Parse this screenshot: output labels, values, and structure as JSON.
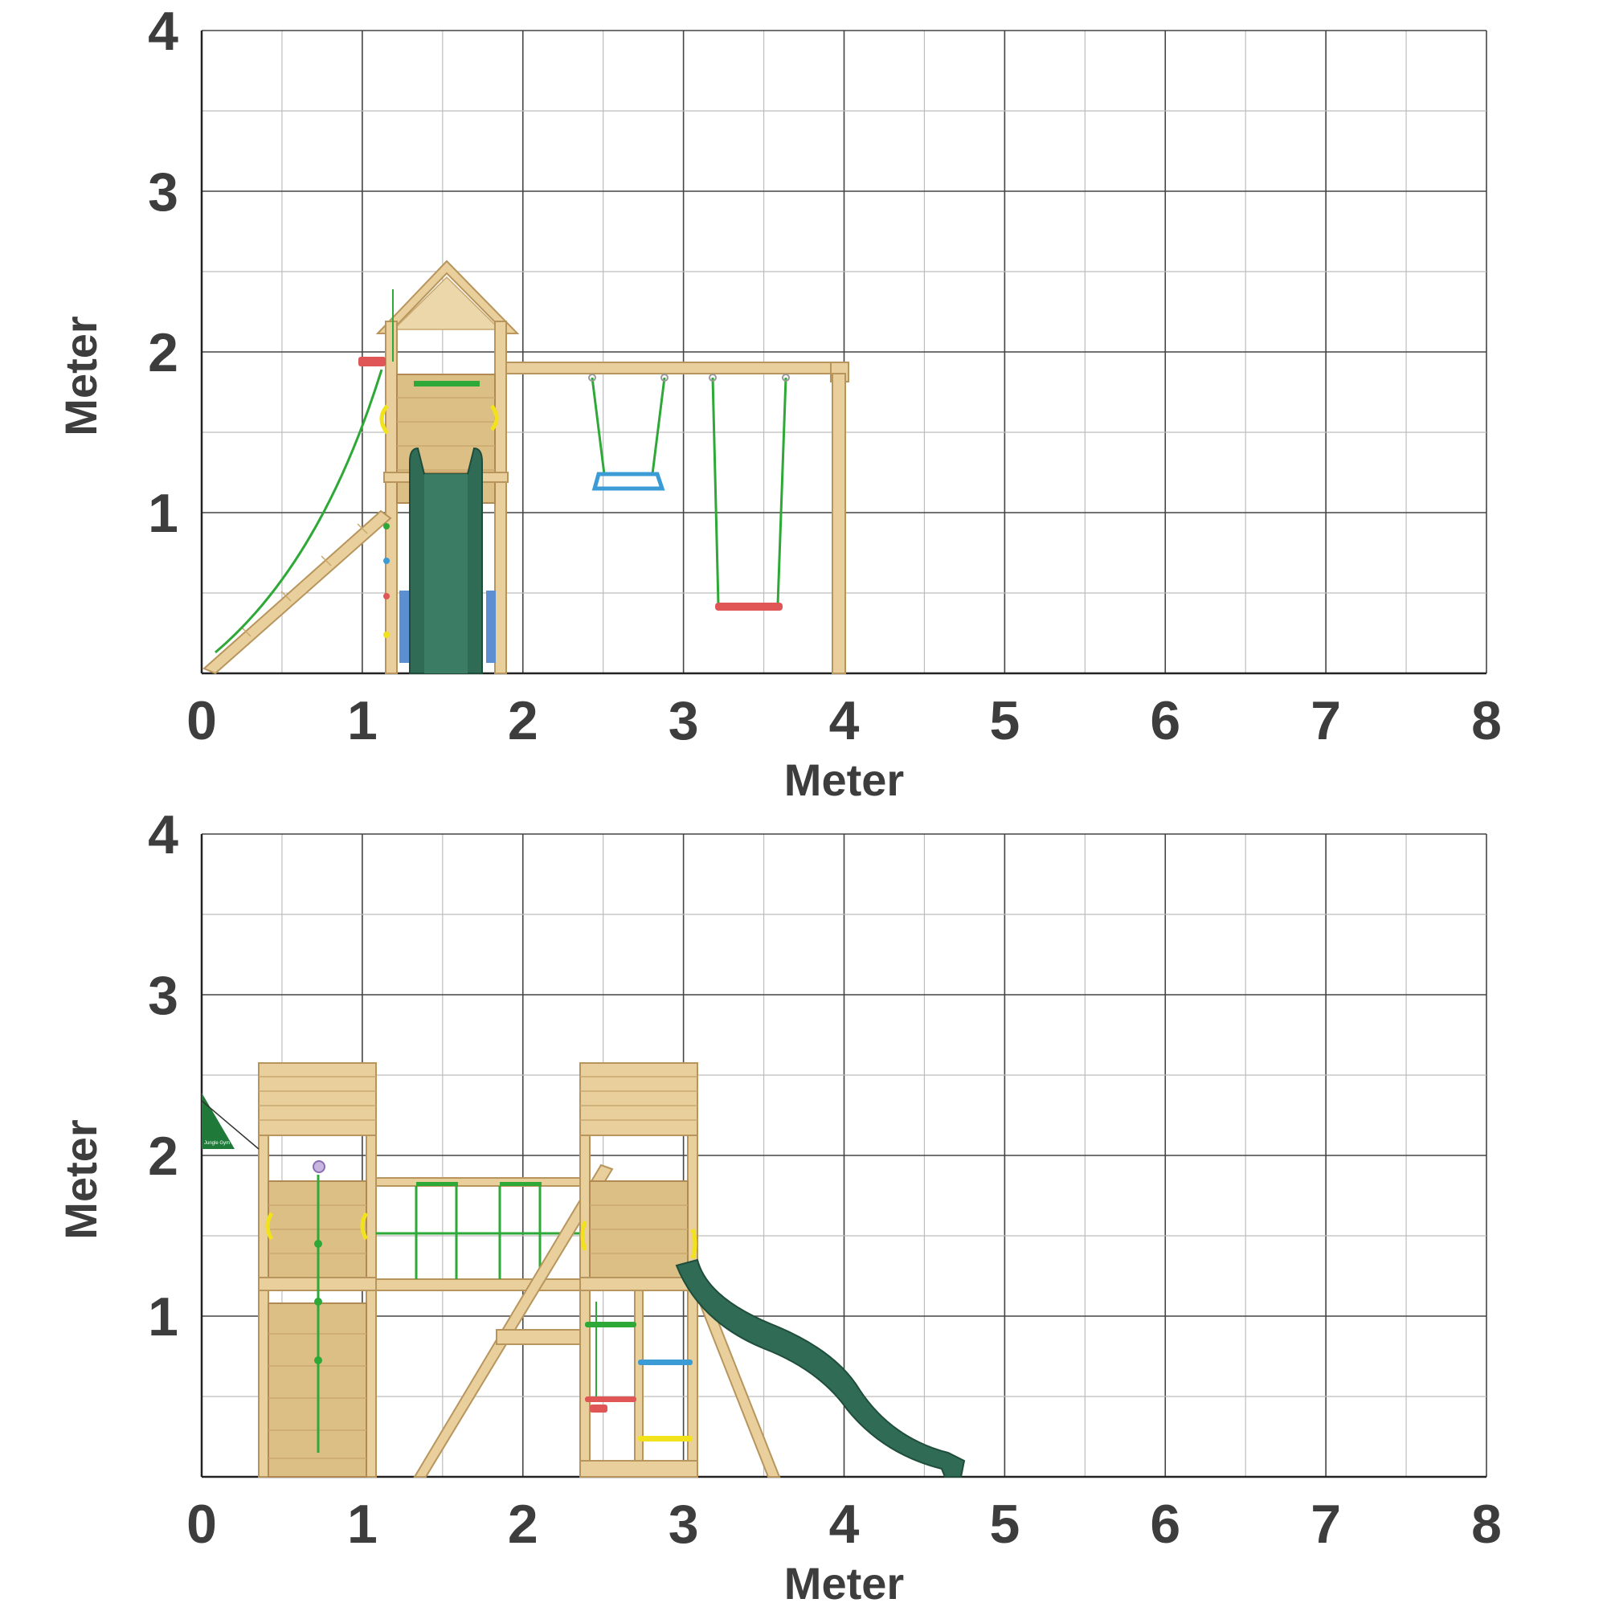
{
  "panels": [
    {
      "id": "side-view",
      "x_ticks": [
        "0",
        "1",
        "2",
        "3",
        "4",
        "5",
        "6",
        "7",
        "8"
      ],
      "y_ticks": [
        "1",
        "2",
        "3",
        "4"
      ],
      "xlabel": "Meter",
      "ylabel": "Meter"
    },
    {
      "id": "front-view",
      "x_ticks": [
        "0",
        "1",
        "2",
        "3",
        "4",
        "5",
        "6",
        "7",
        "8"
      ],
      "y_ticks": [
        "1",
        "2",
        "3",
        "4"
      ],
      "xlabel": "Meter",
      "ylabel": "Meter"
    }
  ],
  "grid": {
    "x_range": [
      0,
      8
    ],
    "y_range": [
      0,
      4
    ],
    "major_step": 1,
    "minor_step": 0.5
  },
  "colors": {
    "wood": "#e8cf9c",
    "slide": "#2f6b55",
    "rope": "#2ea836",
    "swing_seat": "#e05555",
    "trapeze": "#3a9bd5",
    "handle": "#f2e21b"
  },
  "flag_badge": {
    "text": "Jungle Gym"
  }
}
